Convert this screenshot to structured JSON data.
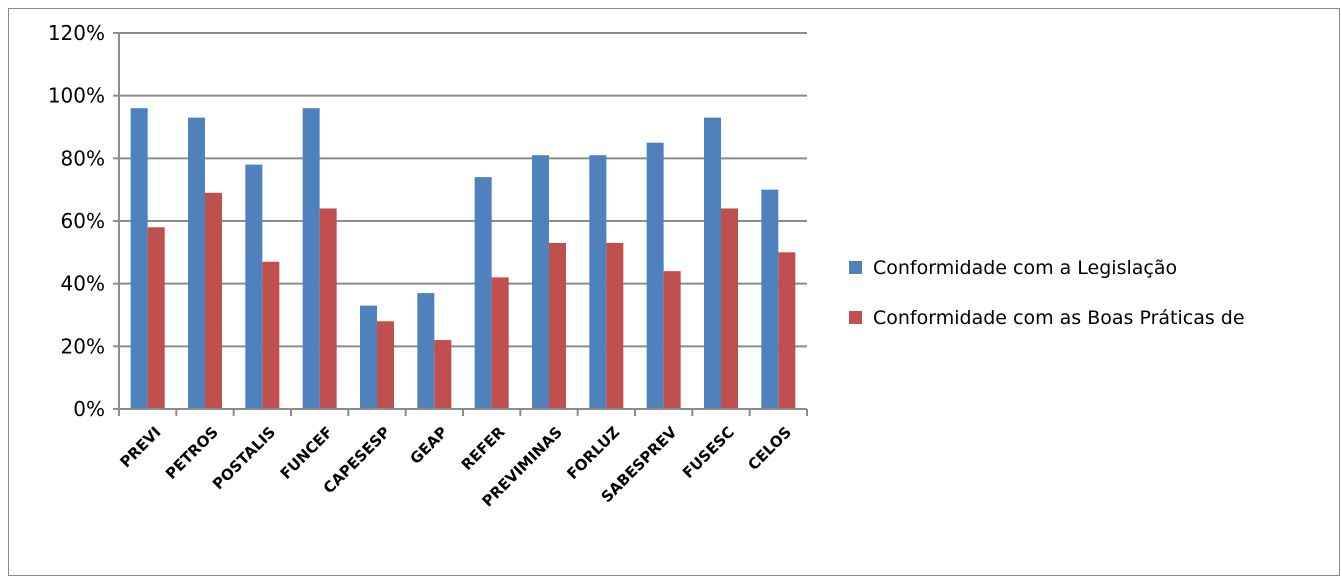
{
  "chart_data": {
    "type": "bar",
    "title": "",
    "xlabel": "",
    "ylabel": "",
    "categories": [
      "PREVI",
      "PETROS",
      "POSTALIS",
      "FUNCEF",
      "CAPESESP",
      "GEAP",
      "REFER",
      "PREVIMINAS",
      "FORLUZ",
      "SABESPREV",
      "FUSESC",
      "CELOS"
    ],
    "series": [
      {
        "name": "Conformidade  com a Legislação",
        "color": "#4F81BD",
        "values": [
          96,
          93,
          78,
          96,
          33,
          37,
          74,
          81,
          81,
          85,
          93,
          70
        ]
      },
      {
        "name": "Conformidade com as Boas Práticas de",
        "color": "#C0504D",
        "values": [
          58,
          69,
          47,
          64,
          28,
          22,
          42,
          53,
          53,
          44,
          64,
          50
        ]
      }
    ],
    "ylim": [
      0,
      120
    ],
    "yticks": [
      0,
      20,
      40,
      60,
      80,
      100,
      120
    ],
    "ytick_labels": [
      "0%",
      "20%",
      "40%",
      "60%",
      "80%",
      "100%",
      "120%"
    ],
    "grid": true,
    "legend_position": "right"
  }
}
